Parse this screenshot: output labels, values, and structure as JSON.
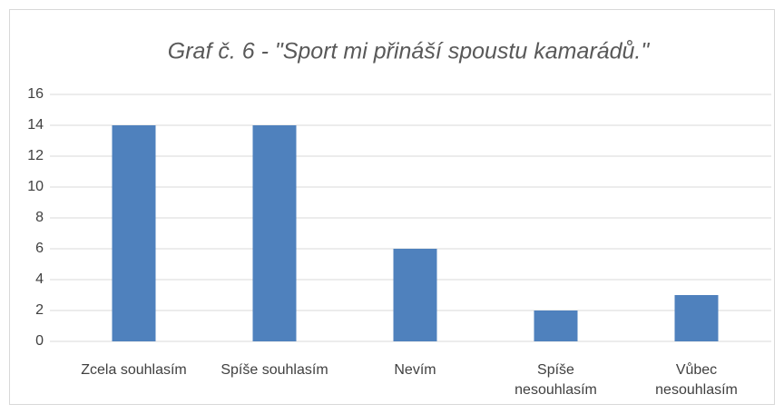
{
  "chart_data": {
    "type": "bar",
    "title": "Graf č. 6 - \"Sport mi přináší spoustu kamarádů.\"",
    "categories": [
      "Zcela souhlasím",
      "Spíše souhlasím",
      "Nevím",
      "Spíše nesouhlasím",
      "Vůbec nesouhlasím"
    ],
    "values": [
      14,
      14,
      6,
      2,
      3
    ],
    "color": "#4f81bd",
    "ylim": [
      0,
      16
    ],
    "yticks": [
      0,
      2,
      4,
      6,
      8,
      10,
      12,
      14,
      16
    ],
    "grid": true
  }
}
